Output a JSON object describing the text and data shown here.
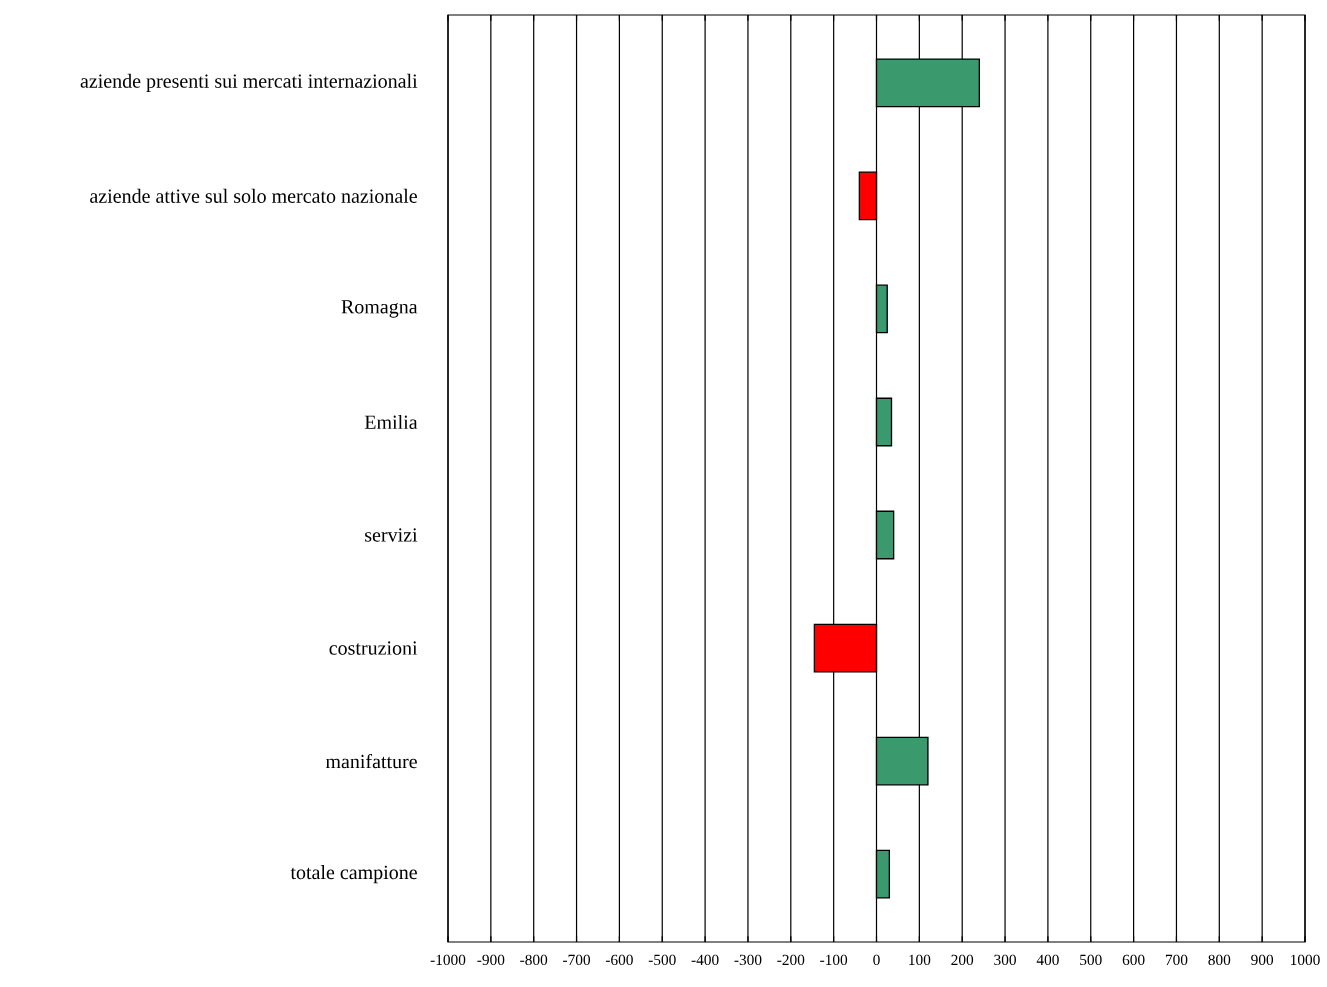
{
  "chart_data": {
    "type": "bar",
    "orientation": "horizontal",
    "categories": [
      "aziende presenti sui mercati internazionali",
      "aziende attive sul solo mercato nazionale",
      "Romagna",
      "Emilia",
      "servizi",
      "costruzioni",
      "manifatture",
      "totale campione"
    ],
    "values": [
      240,
      -40,
      25,
      35,
      40,
      -145,
      120,
      30
    ],
    "colors": [
      "#3a9a6e",
      "#ff0000",
      "#3a9a6e",
      "#3a9a6e",
      "#3a9a6e",
      "#ff0000",
      "#3a9a6e",
      "#3a9a6e"
    ],
    "xlim": [
      -1000,
      1000
    ],
    "xticks": [
      -1000,
      -900,
      -800,
      -700,
      -600,
      -500,
      -400,
      -300,
      -200,
      -100,
      0,
      100,
      200,
      300,
      400,
      500,
      600,
      700,
      800,
      900,
      1000
    ],
    "grid": "x"
  }
}
